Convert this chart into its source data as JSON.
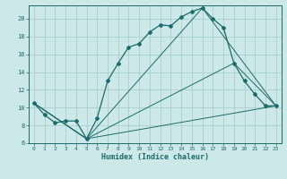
{
  "xlabel": "Humidex (Indice chaleur)",
  "bg_color": "#cde8e8",
  "grid_color": "#aacece",
  "line_color": "#1a6b6b",
  "xlim": [
    -0.5,
    23.5
  ],
  "ylim": [
    6,
    21.5
  ],
  "yticks": [
    6,
    8,
    10,
    12,
    14,
    16,
    18,
    20
  ],
  "xticks": [
    0,
    1,
    2,
    3,
    4,
    5,
    6,
    7,
    8,
    9,
    10,
    11,
    12,
    13,
    14,
    15,
    16,
    17,
    18,
    19,
    20,
    21,
    22,
    23
  ],
  "line1_x": [
    0,
    1,
    2,
    3,
    4,
    5,
    6,
    7,
    8,
    9,
    10,
    11,
    12,
    13,
    14,
    15,
    16,
    17,
    18,
    19,
    20,
    21,
    22,
    23
  ],
  "line1_y": [
    10.5,
    9.2,
    8.3,
    8.5,
    8.5,
    6.5,
    8.8,
    13.0,
    15.0,
    16.8,
    17.2,
    18.5,
    19.3,
    19.2,
    20.2,
    20.8,
    21.2,
    20.0,
    19.0,
    15.0,
    13.0,
    11.5,
    10.2,
    10.2
  ],
  "line2_x": [
    0,
    5,
    23
  ],
  "line2_y": [
    10.5,
    6.5,
    10.2
  ],
  "line3_x": [
    0,
    5,
    19,
    23
  ],
  "line3_y": [
    10.5,
    6.5,
    15.0,
    10.2
  ],
  "line4_x": [
    0,
    5,
    16,
    23
  ],
  "line4_y": [
    10.5,
    6.5,
    21.2,
    10.2
  ]
}
